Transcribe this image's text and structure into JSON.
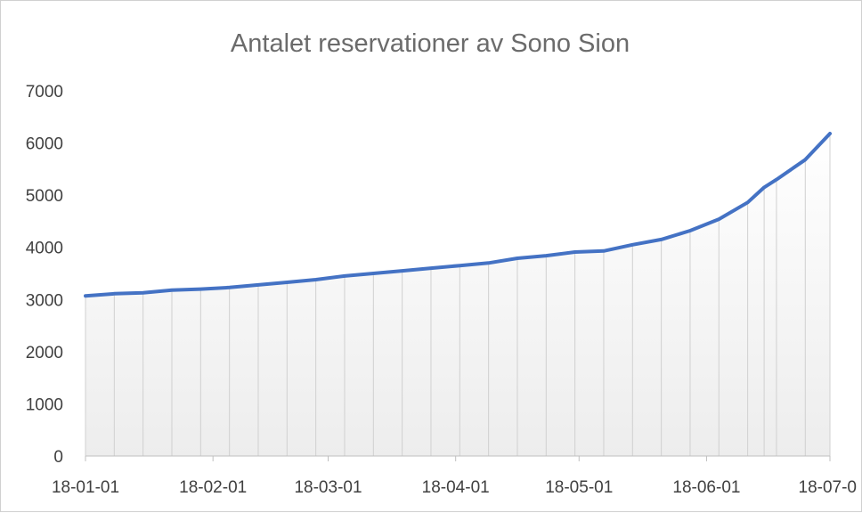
{
  "chart_data": {
    "type": "line",
    "title": "Antalet reservationer av Sono Sion",
    "xlabel": "",
    "ylabel": "",
    "ylim": [
      0,
      7000
    ],
    "y_ticks": [
      0,
      1000,
      2000,
      3000,
      4000,
      5000,
      6000,
      7000
    ],
    "x_tick_labels": [
      "18-01-01",
      "18-02-01",
      "18-03-01",
      "18-04-01",
      "18-05-01",
      "18-06-01",
      "18-07-0"
    ],
    "x_tick_dates": [
      "2018-01-01",
      "2018-02-01",
      "2018-03-01",
      "2018-04-01",
      "2018-05-01",
      "2018-06-01",
      "2018-07-01"
    ],
    "x_range": [
      "2018-01-01",
      "2018-07-01"
    ],
    "grid": "vertical drop lines at each data point",
    "legend": "none",
    "colors": {
      "line": "#4472c4",
      "drop_lines": "#d0d0d0",
      "area_gradient_top": "#ffffff",
      "area_gradient_bottom": "#ededed"
    },
    "series": [
      {
        "points": [
          [
            "2018-01-01",
            3070
          ],
          [
            "2018-01-08",
            3110
          ],
          [
            "2018-01-15",
            3130
          ],
          [
            "2018-01-22",
            3180
          ],
          [
            "2018-01-29",
            3200
          ],
          [
            "2018-02-05",
            3230
          ],
          [
            "2018-02-12",
            3280
          ],
          [
            "2018-02-19",
            3330
          ],
          [
            "2018-02-26",
            3380
          ],
          [
            "2018-03-05",
            3450
          ],
          [
            "2018-03-12",
            3500
          ],
          [
            "2018-03-19",
            3550
          ],
          [
            "2018-03-26",
            3600
          ],
          [
            "2018-04-02",
            3650
          ],
          [
            "2018-04-09",
            3700
          ],
          [
            "2018-04-16",
            3790
          ],
          [
            "2018-04-23",
            3840
          ],
          [
            "2018-04-30",
            3910
          ],
          [
            "2018-05-07",
            3930
          ],
          [
            "2018-05-14",
            4050
          ],
          [
            "2018-05-21",
            4150
          ],
          [
            "2018-05-28",
            4320
          ],
          [
            "2018-06-04",
            4540
          ],
          [
            "2018-06-11",
            4860
          ],
          [
            "2018-06-15",
            5150
          ],
          [
            "2018-06-18",
            5300
          ],
          [
            "2018-06-25",
            5680
          ],
          [
            "2018-07-01",
            6180
          ]
        ]
      }
    ]
  }
}
